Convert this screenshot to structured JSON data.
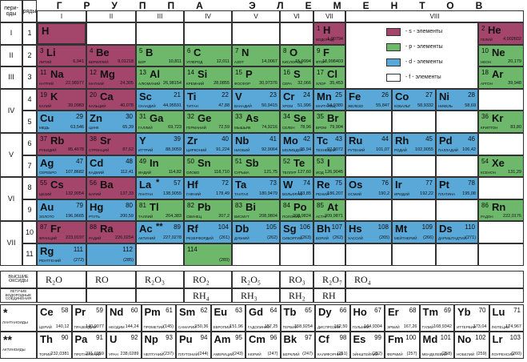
{
  "header": {
    "title": "ГРУППА ЭЛЕМЕНТОВ",
    "periods_label": "пери-оды",
    "rows_label": "ряды",
    "groups": [
      "I",
      "II",
      "III",
      "IV",
      "V",
      "VI",
      "VII",
      "VIII"
    ],
    "periods": [
      "I",
      "II",
      "III",
      "IV",
      "V",
      "VI",
      "VII"
    ]
  },
  "colors": {
    "s": "#a4466c",
    "p": "#6db86b",
    "d": "#5aa8d8",
    "f": "#ffffff"
  },
  "legend": [
    {
      "b": "s",
      "label": "- s - элементы"
    },
    {
      "b": "p",
      "label": "- p - элементы"
    },
    {
      "b": "d",
      "label": "- d - элементы"
    },
    {
      "b": "f",
      "label": "- f - элементы"
    }
  ],
  "table": {
    "rows": [
      {
        "row": "1",
        "elements": [
          {
            "s": "H",
            "b": "s"
          },
          {
            "s": "H",
            "n": "1",
            "m": "1,00794",
            "t": "ВОДОРОД",
            "b": "s"
          },
          {
            "s": "He",
            "n": "2",
            "m": "4,002602",
            "t": "ГЕЛИЙ",
            "b": "s"
          }
        ]
      },
      {
        "row": "2",
        "elements": [
          {
            "s": "Li",
            "n": "3",
            "m": "6,941",
            "t": "ЛИТИЙ",
            "b": "s"
          },
          {
            "s": "Be",
            "n": "4",
            "m": "9,01218",
            "t": "БЕРИЛЛИЙ",
            "b": "s"
          },
          {
            "s": "B",
            "n": "5",
            "m": "10,811",
            "t": "БОР",
            "b": "p"
          },
          {
            "s": "C",
            "n": "6",
            "m": "12,011",
            "t": "УГЛЕРОД",
            "b": "p"
          },
          {
            "s": "N",
            "n": "7",
            "m": "14,0067",
            "t": "АЗОТ",
            "b": "p"
          },
          {
            "s": "O",
            "n": "8",
            "m": "15,9994",
            "t": "КИСЛОРОД",
            "b": "p"
          },
          {
            "s": "F",
            "n": "9",
            "m": "18,998403",
            "t": "ФТОР",
            "b": "p"
          },
          {
            "s": "Ne",
            "n": "10",
            "m": "20,179",
            "t": "НЕОН",
            "b": "p"
          }
        ]
      },
      {
        "row": "3",
        "elements": [
          {
            "s": "Na",
            "n": "11",
            "m": "22,98977",
            "t": "НАТРИЙ",
            "b": "s"
          },
          {
            "s": "Mg",
            "n": "12",
            "m": "24,305",
            "t": "МАГНИЙ",
            "b": "s"
          },
          {
            "s": "Al",
            "n": "13",
            "m": "26,98154",
            "t": "АЛЮМИНИЙ",
            "b": "p"
          },
          {
            "s": "Si",
            "n": "14",
            "m": "28,0855",
            "t": "КРЕМНИЙ",
            "b": "p"
          },
          {
            "s": "P",
            "n": "15",
            "m": "30,97376",
            "t": "ФОСФОР",
            "b": "p"
          },
          {
            "s": "S",
            "n": "16",
            "m": "32,066",
            "t": "СЕРА",
            "b": "p"
          },
          {
            "s": "Cl",
            "n": "17",
            "m": "35,453",
            "t": "ХЛОР",
            "b": "p"
          },
          {
            "s": "Ar",
            "n": "18",
            "m": "39,948",
            "t": "АРГОН",
            "b": "p"
          }
        ]
      },
      {
        "row": "4",
        "elements": [
          {
            "s": "K",
            "n": "19",
            "m": "39,0983",
            "t": "КАЛИЙ",
            "b": "s"
          },
          {
            "s": "Ca",
            "n": "20",
            "m": "40,078",
            "t": "КАЛЬЦИЙ",
            "b": "s"
          },
          {
            "s": "Sc",
            "n": "21",
            "m": "44,95591",
            "t": "СКАНДИЙ",
            "b": "d"
          },
          {
            "s": "Ti",
            "n": "22",
            "m": "47,88",
            "t": "ТИТАН",
            "b": "d"
          },
          {
            "s": "V",
            "n": "23",
            "m": "50,9415",
            "t": "ВАНАДИЙ",
            "b": "d"
          },
          {
            "s": "Cr",
            "n": "24",
            "m": "51,996",
            "t": "ХРОМ",
            "b": "d"
          },
          {
            "s": "Mn",
            "n": "25",
            "m": "54,9380",
            "t": "МАРГАНЕЦ",
            "b": "d"
          },
          {
            "s": "Fe",
            "n": "26",
            "m": "55,847",
            "t": "ЖЕЛЕЗО",
            "b": "d"
          },
          {
            "s": "Co",
            "n": "27",
            "m": "58,9332",
            "t": "КОБАЛЬТ",
            "b": "d"
          },
          {
            "s": "Ni",
            "n": "28",
            "m": "58,69",
            "t": "НИКЕЛЬ",
            "b": "d"
          }
        ]
      },
      {
        "row": "5",
        "elements": [
          {
            "s": "Cu",
            "n": "29",
            "m": "63,546",
            "t": "МЕДЬ",
            "b": "d"
          },
          {
            "s": "Zn",
            "n": "30",
            "m": "65,39",
            "t": "ЦИНК",
            "b": "d"
          },
          {
            "s": "Ga",
            "n": "31",
            "m": "69,723",
            "t": "ГАЛЛИЙ",
            "b": "p"
          },
          {
            "s": "Ge",
            "n": "32",
            "m": "72,59",
            "t": "ГЕРМАНИЙ",
            "b": "p"
          },
          {
            "s": "As",
            "n": "33",
            "m": "74,9216",
            "t": "МЫШЬЯК",
            "b": "p"
          },
          {
            "s": "Se",
            "n": "34",
            "m": "78,96",
            "t": "СЕЛЕН",
            "b": "p"
          },
          {
            "s": "Br",
            "n": "35",
            "m": "79,904",
            "t": "БРОМ",
            "b": "p"
          },
          {
            "s": "Kr",
            "n": "36",
            "m": "83,80",
            "t": "КРИПТОН",
            "b": "p"
          }
        ]
      },
      {
        "row": "6",
        "elements": [
          {
            "s": "Rb",
            "n": "37",
            "m": "85,4678",
            "t": "РУБИДИЙ",
            "b": "s"
          },
          {
            "s": "Sr",
            "n": "38",
            "m": "87,62",
            "t": "СТРОНЦИЙ",
            "b": "s"
          },
          {
            "s": "Y",
            "n": "39",
            "m": "88,9059",
            "t": "ИТТРИЙ",
            "b": "d"
          },
          {
            "s": "Zr",
            "n": "40",
            "m": "91,224",
            "t": "ЦИРКОНИЙ",
            "b": "d"
          },
          {
            "s": "Nb",
            "n": "41",
            "m": "92,9064",
            "t": "НИОБИЙ",
            "b": "d"
          },
          {
            "s": "Mo",
            "n": "42",
            "m": "95,94",
            "t": "МОЛИБДЕН",
            "b": "d"
          },
          {
            "s": "Tc",
            "n": "43",
            "m": "97,9072",
            "t": "ТЕХНЕЦИЙ",
            "b": "d"
          },
          {
            "s": "Ru",
            "n": "44",
            "m": "101,07",
            "t": "РУТЕНИЙ",
            "b": "d"
          },
          {
            "s": "Rh",
            "n": "45",
            "m": "102,9055",
            "t": "РОДИЙ",
            "b": "d"
          },
          {
            "s": "Pd",
            "n": "46",
            "m": "106,42",
            "t": "ПАЛЛАДИЙ",
            "b": "d"
          }
        ]
      },
      {
        "row": "7",
        "elements": [
          {
            "s": "Ag",
            "n": "47",
            "m": "107,8682",
            "t": "СЕРЕБРО",
            "b": "d"
          },
          {
            "s": "Cd",
            "n": "48",
            "m": "112,41",
            "t": "КАДМИЙ",
            "b": "d"
          },
          {
            "s": "In",
            "n": "49",
            "m": "114,82",
            "t": "ИНДИЙ",
            "b": "p"
          },
          {
            "s": "Sn",
            "n": "50",
            "m": "118,710",
            "t": "ОЛОВО",
            "b": "p"
          },
          {
            "s": "Sb",
            "n": "51",
            "m": "121,75",
            "t": "СУРЬМА",
            "b": "p"
          },
          {
            "s": "Te",
            "n": "52",
            "m": "127,60",
            "t": "ТЕЛЛУР",
            "b": "p"
          },
          {
            "s": "I",
            "n": "53",
            "m": "126,9045",
            "t": "ИОД",
            "b": "p"
          },
          {
            "s": "Xe",
            "n": "54",
            "m": "131,29",
            "t": "КСЕНОН",
            "b": "p"
          }
        ]
      },
      {
        "row": "8",
        "elements": [
          {
            "s": "Cs",
            "n": "55",
            "m": "132,9054",
            "t": "ЦЕЗИЙ",
            "b": "s"
          },
          {
            "s": "Ba",
            "n": "56",
            "m": "137,33",
            "t": "БАРИЙ",
            "b": "s"
          },
          {
            "s": "La",
            "x": "*",
            "n": "57",
            "m": "138,9055",
            "t": "ЛАНТАН",
            "b": "d"
          },
          {
            "s": "Hf",
            "n": "72",
            "m": "178,49",
            "t": "ГАФНИЙ",
            "b": "d"
          },
          {
            "s": "Ta",
            "n": "73",
            "m": "180,9479",
            "t": "ТАНТАЛ",
            "b": "d"
          },
          {
            "s": "W",
            "n": "74",
            "m": "183,85",
            "t": "ВОЛЬФРАМ",
            "b": "d"
          },
          {
            "s": "Re",
            "n": "75",
            "m": "186,207",
            "t": "РЕНИЙ",
            "b": "d"
          },
          {
            "s": "Os",
            "n": "76",
            "m": "190,2",
            "t": "ОСМИЙ",
            "b": "d"
          },
          {
            "s": "Ir",
            "n": "77",
            "m": "192,22",
            "t": "ИРИДИЙ",
            "b": "d"
          },
          {
            "s": "Pt",
            "n": "78",
            "m": "195,08",
            "t": "ПЛАТИНА",
            "b": "d"
          }
        ]
      },
      {
        "row": "9",
        "elements": [
          {
            "s": "Au",
            "n": "79",
            "m": "196,9665",
            "t": "ЗОЛОТО",
            "b": "d"
          },
          {
            "s": "Hg",
            "n": "80",
            "m": "200,59",
            "t": "РТУТЬ",
            "b": "d"
          },
          {
            "s": "Tl",
            "n": "81",
            "m": "204,383",
            "t": "ТАЛЛИЙ",
            "b": "p"
          },
          {
            "s": "Pb",
            "n": "82",
            "m": "207,2",
            "t": "СВИНЕЦ",
            "b": "p"
          },
          {
            "s": "Bi",
            "n": "83",
            "m": "208,9804",
            "t": "ВИСМУТ",
            "b": "p"
          },
          {
            "s": "Po",
            "n": "84",
            "m": "208,9824",
            "t": "ПОЛОНИЙ",
            "b": "p"
          },
          {
            "s": "At",
            "n": "85",
            "m": "209,9871",
            "t": "АСТАТ",
            "b": "p"
          },
          {
            "s": "Rn",
            "n": "86",
            "m": "222,0176",
            "t": "РАДОН",
            "b": "p"
          }
        ]
      },
      {
        "row": "10",
        "elements": [
          {
            "s": "Fr",
            "n": "87",
            "m": "223,0197",
            "t": "ФРАНЦИЙ",
            "b": "s"
          },
          {
            "s": "Ra",
            "n": "88",
            "m": "226,0254",
            "t": "РАДИЙ",
            "b": "s"
          },
          {
            "s": "Ac",
            "x": "**",
            "n": "89",
            "m": "227,0278",
            "t": "АКТИНИЙ",
            "b": "d"
          },
          {
            "s": "Rf",
            "n": "104",
            "m": "(261)",
            "t": "РЕЗЕРФОРДИЙ",
            "b": "d"
          },
          {
            "s": "Db",
            "n": "105",
            "m": "(262)",
            "t": "ДУБНИЙ",
            "b": "d"
          },
          {
            "s": "Sg",
            "n": "106",
            "m": "(263)",
            "t": "СИБОРГИЙ",
            "b": "d"
          },
          {
            "s": "Bh",
            "n": "107",
            "m": "(262)",
            "t": "БОРИЙ",
            "b": "d"
          },
          {
            "s": "Hs",
            "n": "108",
            "m": "(265)",
            "t": "ХАССИЙ",
            "b": "d"
          },
          {
            "s": "Mt",
            "n": "109",
            "m": "(266)",
            "t": "МЕЙТНЕРИЙ",
            "b": "d"
          },
          {
            "s": "Ds",
            "n": "110",
            "m": "(271)",
            "t": "ДАРМШТАДТИЙ",
            "b": "d"
          }
        ]
      },
      {
        "row": "11",
        "elements": [
          {
            "s": "Rg",
            "n": "111",
            "m": "(272)",
            "t": "РЕНТГЕНИЙ",
            "b": "d"
          },
          {
            "n": "112",
            "m": "(285)",
            "b": "d"
          },
          {
            "n": "114",
            "m": "(289)",
            "b": "p"
          }
        ]
      }
    ]
  },
  "oxides": {
    "label": "ВЫСШИЕ ОКСИДЫ",
    "values": [
      "R₂O",
      "RO",
      "R₂O₃",
      "RO₂",
      "R₂O₅",
      "RO₃",
      "R₂O₇",
      "RO₄"
    ]
  },
  "hydrides": {
    "label": "ЛЕТУЧИЕ ВОДОРОДНЫЕ СОЕДИНЕНИЯ",
    "values": [
      "RH₄",
      "RH₃",
      "RH₂",
      "RH"
    ]
  },
  "lanthanides": {
    "mark": "*",
    "label": "ЛАНТАНОИДЫ",
    "elements": [
      {
        "s": "Ce",
        "n": "58",
        "m": "140,12",
        "t": "ЦЕРИЙ"
      },
      {
        "s": "Pr",
        "n": "59",
        "m": "140,9077",
        "t": "ПРАЗЕОДИМ"
      },
      {
        "s": "Nd",
        "n": "60",
        "m": "144,24",
        "t": "НЕОДИМ"
      },
      {
        "s": "Pm",
        "n": "61",
        "m": "(145)",
        "t": "ПРОМЕТИЙ"
      },
      {
        "s": "Sm",
        "n": "62",
        "m": "150,36",
        "t": "САМАРИЙ"
      },
      {
        "s": "Eu",
        "n": "63",
        "m": "151,96",
        "t": "ЕВРОПИЙ"
      },
      {
        "s": "Gd",
        "n": "64",
        "m": "157,25",
        "t": "ГАДОЛИНИЙ"
      },
      {
        "s": "Tb",
        "n": "65",
        "m": "158,9254",
        "t": "ТЕРБИЙ"
      },
      {
        "s": "Dy",
        "n": "66",
        "m": "162,50",
        "t": "ДИСПРОЗИЙ"
      },
      {
        "s": "Ho",
        "n": "67",
        "m": "164,9304",
        "t": "ГОЛЬМИЙ"
      },
      {
        "s": "Er",
        "n": "68",
        "m": "167,26",
        "t": "ЭРБИЙ"
      },
      {
        "s": "Tm",
        "n": "69",
        "m": "168,9342",
        "t": "ТУЛИЙ"
      },
      {
        "s": "Yb",
        "n": "70",
        "m": "173,04",
        "t": "ИТТЕРБИЙ"
      },
      {
        "s": "Lu",
        "n": "71",
        "m": "174,967",
        "t": "ЛЮТЕЦИЙ"
      }
    ]
  },
  "actinides": {
    "mark": "**",
    "label": "АКТИНОИДЫ",
    "elements": [
      {
        "s": "Th",
        "n": "90",
        "m": "232,0381",
        "t": "ТОРИЙ"
      },
      {
        "s": "Pa",
        "n": "91",
        "m": "231,0359",
        "t": "ПРОТАКТИНИЙ"
      },
      {
        "s": "U",
        "n": "92",
        "m": "238,0289",
        "t": "УРАН"
      },
      {
        "s": "Np",
        "n": "93",
        "m": "(237)",
        "t": "НЕПТУНИЙ"
      },
      {
        "s": "Pu",
        "n": "94",
        "m": "(244)",
        "t": "ПЛУТОНИЙ"
      },
      {
        "s": "Am",
        "n": "95",
        "m": "(243)",
        "t": "АМЕРИЦИЙ"
      },
      {
        "s": "Cm",
        "n": "96",
        "m": "(247)",
        "t": "КЮРИЙ"
      },
      {
        "s": "Bk",
        "n": "97",
        "m": "(247)",
        "t": "БЕРКЛИЙ"
      },
      {
        "s": "Cf",
        "n": "98",
        "m": "(251)",
        "t": "КАЛИФОРНИЙ"
      },
      {
        "s": "Es",
        "n": "99",
        "m": "(252)",
        "t": "ЭЙНШТЕЙНИЙ"
      },
      {
        "s": "Fm",
        "n": "100",
        "m": "(257)",
        "t": "ФЕРМИЙ"
      },
      {
        "s": "Md",
        "n": "101",
        "m": "(258)",
        "t": "МЕНДЕЛЕВИЙ"
      },
      {
        "s": "No",
        "n": "102",
        "m": "(259)",
        "t": "НОБЕЛИЙ"
      },
      {
        "s": "Lr",
        "n": "103",
        "m": "(260)",
        "t": "ЛОУРЕНСИЙ"
      }
    ]
  }
}
